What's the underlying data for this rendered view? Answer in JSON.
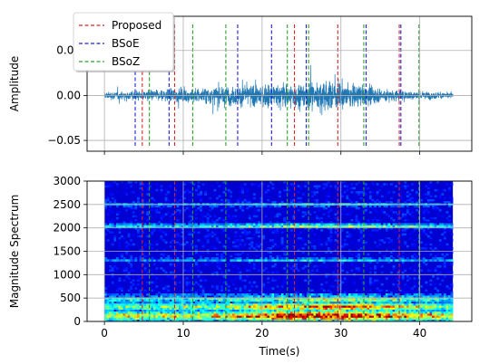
{
  "chart_data": [
    {
      "type": "line",
      "panel": "waveform",
      "xlabel": "",
      "ylabel": "Amplitude",
      "xlim": [
        -2.2,
        46.6
      ],
      "ylim": [
        -0.062,
        0.088
      ],
      "xticks": [
        0,
        10,
        20,
        30,
        40
      ],
      "yticks": [
        -0.05,
        0.0,
        0.05
      ],
      "ytick_labels": [
        "−0.05",
        "0.00",
        "0.05"
      ],
      "grid": true,
      "series": [
        {
          "name": "",
          "color": "#1f77b4",
          "x_start": 0.0,
          "x_end": 44.2,
          "envelope": [
            {
              "x": 0.0,
              "amp": 0.008
            },
            {
              "x": 3.0,
              "amp": 0.011
            },
            {
              "x": 6.0,
              "amp": 0.013
            },
            {
              "x": 10.0,
              "amp": 0.016
            },
            {
              "x": 15.0,
              "amp": 0.021
            },
            {
              "x": 20.0,
              "amp": 0.026
            },
            {
              "x": 25.0,
              "amp": 0.03
            },
            {
              "x": 27.0,
              "amp": 0.034
            },
            {
              "x": 30.0,
              "amp": 0.032
            },
            {
              "x": 33.0,
              "amp": 0.022
            },
            {
              "x": 37.0,
              "amp": 0.013
            },
            {
              "x": 41.0,
              "amp": 0.009
            },
            {
              "x": 44.2,
              "amp": 0.006
            }
          ]
        }
      ],
      "legend": {
        "position": "upper-left",
        "entries": [
          {
            "name": "Proposed",
            "color": "#d62728"
          },
          {
            "name": "BSoE",
            "color": "#1f1fd6"
          },
          {
            "name": "BSoZ",
            "color": "#2ca02c"
          }
        ]
      },
      "event_lines": {
        "Proposed": [
          4.8,
          8.9,
          24.1,
          29.6,
          37.4
        ],
        "BSoE": [
          3.9,
          8.2,
          16.9,
          21.2,
          25.6,
          33.2,
          37.6
        ],
        "BSoZ": [
          5.7,
          11.2,
          15.4,
          23.2,
          25.9,
          32.9,
          39.9
        ]
      },
      "line_ymin": -0.056,
      "line_ymax": 0.081
    },
    {
      "type": "heatmap",
      "panel": "spectrogram",
      "xlabel": "Time(s)",
      "ylabel": "Magnitude Spectrum",
      "xlim": [
        -2.2,
        46.6
      ],
      "ylim": [
        0,
        3000
      ],
      "xticks": [
        0,
        10,
        20,
        30,
        40
      ],
      "yticks": [
        0,
        500,
        1000,
        1500,
        2000,
        2500,
        3000
      ],
      "grid": true,
      "x_range": [
        0.0,
        44.2
      ],
      "colormap": "jet",
      "bright_bands_hz": [
        {
          "f": 120,
          "w": 80,
          "level": 0.85
        },
        {
          "f": 320,
          "w": 60,
          "level": 0.65
        },
        {
          "f": 480,
          "w": 40,
          "level": 0.45
        },
        {
          "f": 1320,
          "w": 25,
          "level": 0.35
        },
        {
          "f": 2050,
          "w": 30,
          "level": 0.55
        },
        {
          "f": 2500,
          "w": 30,
          "level": 0.3
        }
      ],
      "event_lines": {
        "Proposed": [
          4.8,
          8.9,
          24.1,
          29.6,
          37.4
        ],
        "BSoZ": [
          5.7,
          11.2,
          15.4,
          23.2,
          25.9,
          32.9,
          39.9
        ]
      }
    }
  ]
}
